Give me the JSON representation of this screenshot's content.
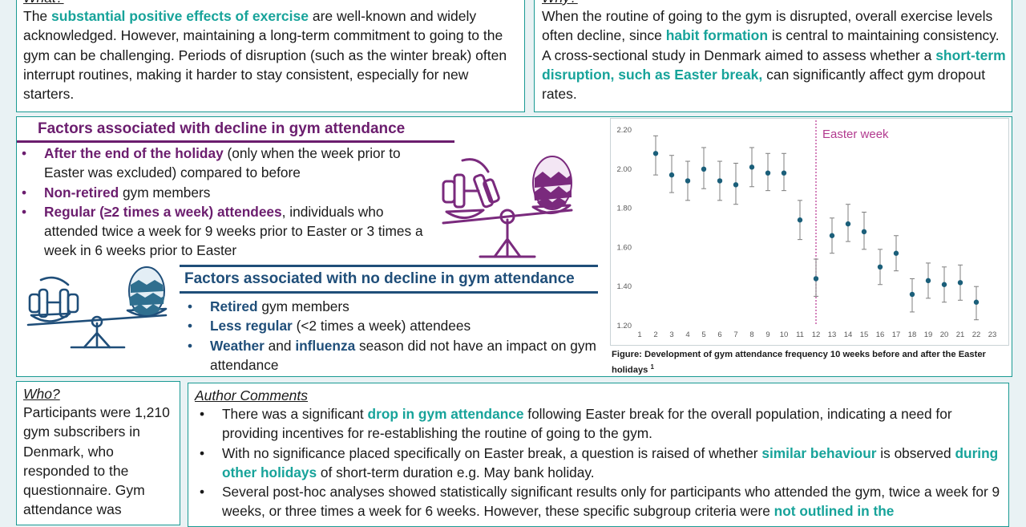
{
  "what": {
    "heading": "What?",
    "t1": "The ",
    "h1": "substantial positive effects of exercise",
    "t2": " are well-known and widely acknowledged. However, maintaining a long-term commitment to going to the gym can be challenging. Periods of disruption (such as the winter break) often interrupt routines, making it harder to stay consistent, especially for new starters."
  },
  "why": {
    "heading": "Why?",
    "t1": "When the routine of going to the gym is disrupted, overall exercise levels often decline, since ",
    "h1": "habit formation",
    "t2": " is central to maintaining consistency. A cross-sectional study in Denmark aimed to assess whether a ",
    "h2": "short-term disruption, such as Easter break,",
    "t3": " can significantly affect gym dropout rates."
  },
  "decline": {
    "title": "Factors associated with decline in gym attendance",
    "items": [
      {
        "b": "After the end of the holiday",
        "r": " (only when the week prior to Easter was excluded) compared to before"
      },
      {
        "b": "Non-retired",
        "r": " gym members"
      },
      {
        "b": "Regular (≥2 times a week) attendees",
        "r": ", individuals who attended twice a week for 9 weeks prior to Easter or 3 times a week in 6 weeks prior to Easter"
      }
    ]
  },
  "nodecline": {
    "title": "Factors associated with no decline in gym attendance",
    "items": [
      {
        "b": "Retired",
        "r": " gym members"
      },
      {
        "b": "Less regular",
        "r": " (<2 times a week) attendees"
      },
      {
        "b": "Weather",
        "m": " and ",
        "b2": "influenza",
        "r": " season did not have an impact on gym attendance"
      }
    ]
  },
  "chart_data": {
    "type": "scatter",
    "x": [
      2,
      3,
      4,
      5,
      6,
      7,
      8,
      9,
      10,
      11,
      12,
      13,
      14,
      15,
      16,
      17,
      18,
      19,
      20,
      21,
      22
    ],
    "values": [
      2.08,
      1.97,
      1.94,
      2.0,
      1.94,
      1.92,
      2.01,
      1.98,
      1.98,
      1.74,
      1.44,
      1.66,
      1.72,
      1.68,
      1.5,
      1.57,
      1.36,
      1.43,
      1.41,
      1.42,
      1.32
    ],
    "error_low": [
      1.97,
      1.88,
      1.84,
      1.9,
      1.84,
      1.82,
      1.91,
      1.89,
      1.89,
      1.64,
      1.35,
      1.57,
      1.63,
      1.59,
      1.41,
      1.48,
      1.27,
      1.34,
      1.32,
      1.33,
      1.23
    ],
    "error_high": [
      2.17,
      2.07,
      2.04,
      2.11,
      2.04,
      2.03,
      2.11,
      2.08,
      2.08,
      1.84,
      1.54,
      1.75,
      1.82,
      1.78,
      1.59,
      1.66,
      1.44,
      1.52,
      1.5,
      1.51,
      1.4
    ],
    "x_ticks": [
      "1",
      "2",
      "3",
      "4",
      "5",
      "6",
      "7",
      "8",
      "9",
      "10",
      "11",
      "12",
      "13",
      "14",
      "15",
      "16",
      "17",
      "18",
      "19",
      "20",
      "21",
      "22",
      "23"
    ],
    "y_ticks": [
      "1.20",
      "1.40",
      "1.60",
      "1.80",
      "2.00",
      "2.20"
    ],
    "ylim": [
      1.2,
      2.2
    ],
    "xlim": [
      1,
      23
    ],
    "annotation": "Easter week",
    "annotation_x": 12,
    "point_color": "#1b5f7a",
    "line_color": "#b7338f"
  },
  "caption": {
    "text": "Figure: Development of gym attendance frequency 10 weeks before and after the Easter holidays",
    "sup": "1"
  },
  "who": {
    "heading": "Who?",
    "text": "Participants were 1,210 gym subscribers in Denmark, who responded to the questionnaire. Gym attendance was"
  },
  "comments": {
    "heading": "Author Comments",
    "items": [
      {
        "t1": "There was a significant ",
        "h1": "drop in gym attendance",
        "t2": " following Easter break for the overall population, indicating a need for providing incentives for re-establishing the routine of going to the gym."
      },
      {
        "t1": "With no significance placed specifically on Easter break, a question is raised of whether ",
        "h1": "similar behaviour",
        "t2": " is observed ",
        "h2": "during other holidays",
        "t3": " of short-term duration e.g. May bank holiday."
      },
      {
        "t1": "Several post-hoc analyses showed statistically significant results only for participants who attended the gym, twice a week for 9 weeks, or three times a week for 6 weeks. However, these specific subgroup criteria were ",
        "h1": "not outlined in the"
      }
    ]
  }
}
